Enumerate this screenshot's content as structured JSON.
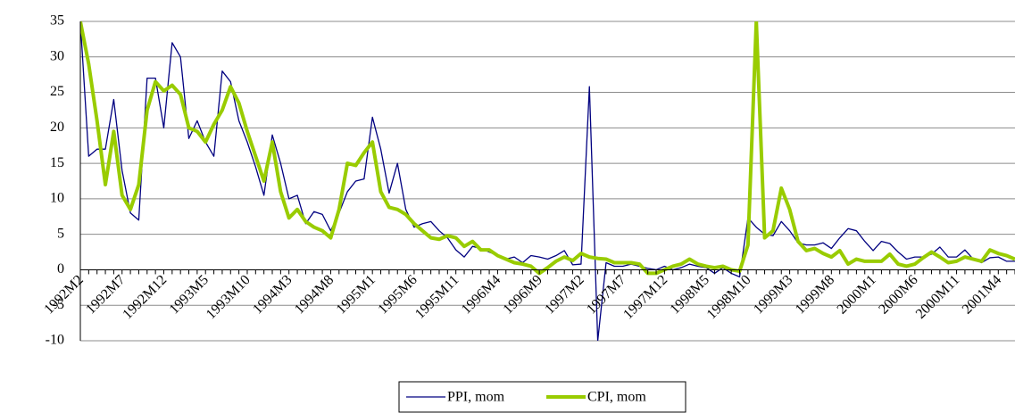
{
  "chart_data": {
    "type": "line",
    "categories": [
      "1992M2",
      null,
      null,
      null,
      null,
      "1992M7",
      null,
      null,
      null,
      null,
      "1992M12",
      null,
      null,
      null,
      null,
      "1993M5",
      null,
      null,
      null,
      null,
      "1993M10",
      null,
      null,
      null,
      null,
      "1994M3",
      null,
      null,
      null,
      null,
      "1994M8",
      null,
      null,
      null,
      null,
      "1995M1",
      null,
      null,
      null,
      null,
      "1995M6",
      null,
      null,
      null,
      null,
      "1995M11",
      null,
      null,
      null,
      null,
      "1996M4",
      null,
      null,
      null,
      null,
      "1996M9",
      null,
      null,
      null,
      null,
      "1997M2",
      null,
      null,
      null,
      null,
      "1997M7",
      null,
      null,
      null,
      null,
      "1997M12",
      null,
      null,
      null,
      null,
      "1998M5",
      null,
      null,
      null,
      null,
      "1998M10",
      null,
      null,
      null,
      null,
      "1999M3",
      null,
      null,
      null,
      null,
      "1999M8",
      null,
      null,
      null,
      null,
      "2000M1",
      null,
      null,
      null,
      null,
      "2000M6",
      null,
      null,
      null,
      null,
      "2000M11",
      null,
      null,
      null,
      null,
      "2001M4",
      null,
      null
    ],
    "series": [
      {
        "name": "PPI, mom",
        "color": "#000080",
        "width": 1.3,
        "values": [
          35,
          16,
          17,
          17,
          24,
          14,
          8,
          7,
          27,
          27,
          20,
          32,
          30,
          18.5,
          21,
          18,
          16,
          28,
          26.5,
          21,
          18,
          14.5,
          10.5,
          19,
          15,
          10,
          10.5,
          6.5,
          8.2,
          7.8,
          5.5,
          8,
          11,
          12.5,
          12.8,
          21.5,
          17,
          10.8,
          15,
          8.5,
          6,
          6.5,
          6.8,
          5.5,
          4.5,
          2.8,
          1.8,
          3.3,
          3,
          2.5,
          2,
          1.5,
          1.8,
          1,
          2,
          1.8,
          1.5,
          2,
          2.7,
          0.7,
          0.8,
          25.8,
          -10,
          1,
          0.5,
          0.5,
          0.8,
          0.5,
          0.2,
          0,
          0.5,
          0,
          0.3,
          0.8,
          0.5,
          0.3,
          -0.5,
          0.3,
          -0.5,
          -1,
          7.3,
          6,
          5,
          4.8,
          6.8,
          5.5,
          3.8,
          3.5,
          3.5,
          3.8,
          3,
          4.5,
          5.8,
          5.5,
          4,
          2.7,
          4,
          3.7,
          2.5,
          1.5,
          1.8,
          1.8,
          2.2,
          3.2,
          1.8,
          1.8,
          2.8,
          1.5,
          1,
          1.7,
          1.8,
          1.2,
          1.2
        ]
      },
      {
        "name": "CPI, mom",
        "color": "#99cc00",
        "width": 4,
        "values": [
          35,
          29,
          21,
          12,
          19.5,
          10.5,
          8.5,
          12,
          22.5,
          26.5,
          25.2,
          26,
          24.7,
          20,
          19.5,
          18,
          20.5,
          22.5,
          25.8,
          23.5,
          19.5,
          16,
          12.5,
          18,
          11,
          7.3,
          8.5,
          6.8,
          6,
          5.5,
          4.5,
          8.5,
          15,
          14.7,
          16.5,
          18,
          11,
          8.8,
          8.5,
          7.8,
          6.5,
          5.5,
          4.5,
          4.3,
          4.8,
          4.5,
          3.3,
          4,
          2.8,
          2.8,
          2,
          1.5,
          1,
          0.8,
          0.5,
          -0.5,
          0.3,
          1.2,
          1.8,
          1.3,
          2.3,
          1.8,
          1.6,
          1.5,
          1,
          1,
          1,
          0.8,
          -0.5,
          -0.5,
          0,
          0.5,
          0.8,
          1.5,
          0.8,
          0.5,
          0.3,
          0.5,
          0,
          -0.2,
          3.5,
          35,
          4.5,
          5.5,
          11.5,
          8.5,
          4,
          2.7,
          3,
          2.3,
          1.8,
          2.7,
          0.8,
          1.5,
          1.2,
          1.2,
          1.2,
          2.2,
          0.8,
          0.5,
          0.8,
          1.7,
          2.5,
          1.8,
          1,
          1.2,
          1.8,
          1.5,
          1.2,
          2.8,
          2.3,
          2,
          1.5
        ]
      }
    ],
    "ylim": [
      -10,
      35
    ],
    "yticks": [
      -10,
      -5,
      0,
      5,
      10,
      15,
      20,
      25,
      30,
      35
    ],
    "grid": true,
    "legend": "bottom"
  }
}
